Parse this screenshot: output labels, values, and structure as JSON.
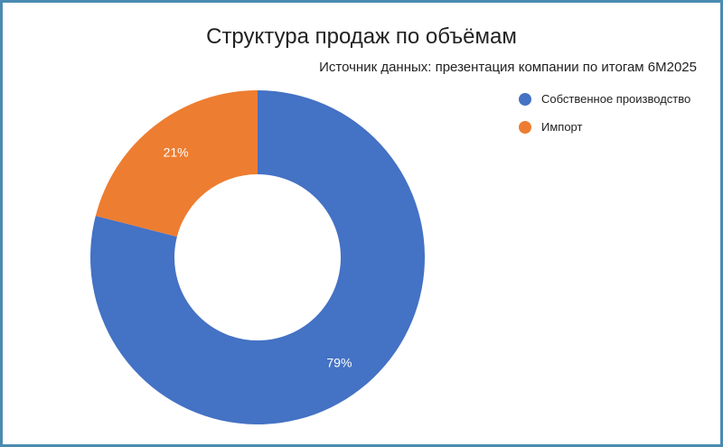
{
  "chart_data": {
    "type": "pie",
    "title": "Структура продаж по объёмам",
    "subtitle": "Источник данных: презентация компании по итогам 6М2025",
    "donut": true,
    "legend_position": "right",
    "categories": [
      "Собственное производство",
      "Импорт"
    ],
    "values": [
      79,
      21
    ],
    "value_labels": [
      "79%",
      "21%"
    ],
    "colors": [
      "#4472c4",
      "#ed7d31"
    ],
    "start": "top",
    "direction": "clockwise"
  }
}
